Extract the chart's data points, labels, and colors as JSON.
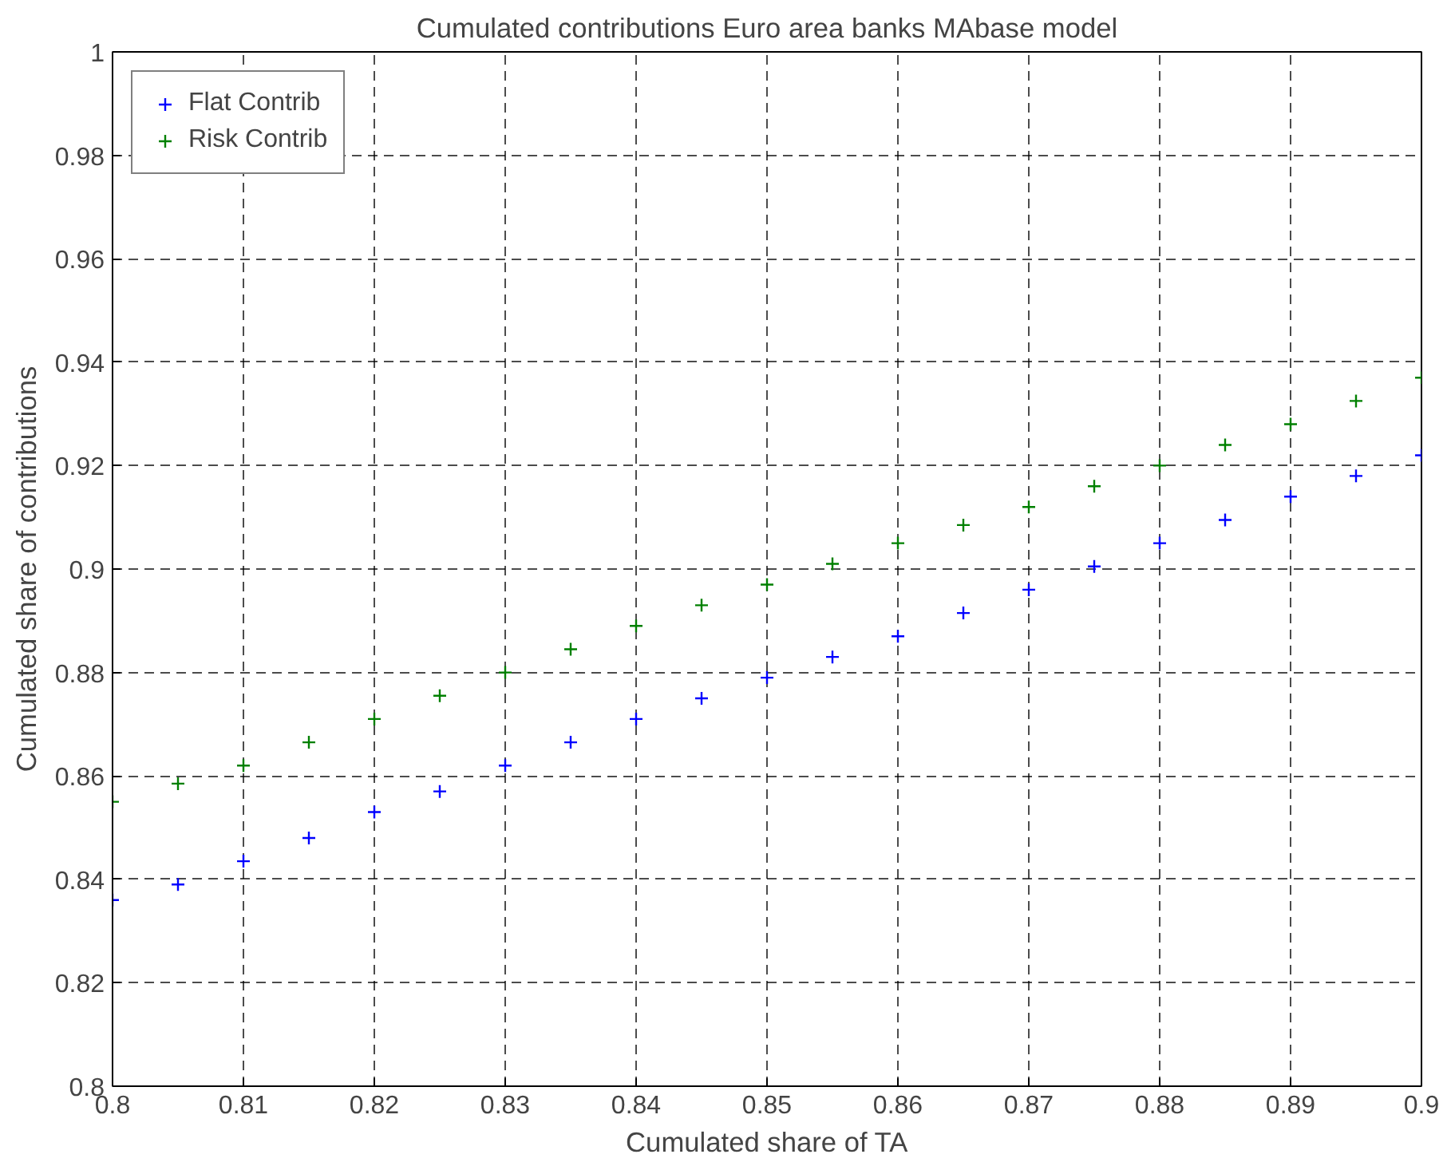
{
  "chart_data": {
    "type": "scatter",
    "title": "Cumulated contributions Euro area banks MAbase model",
    "xlabel": "Cumulated share of TA",
    "ylabel": "Cumulated share of contributions",
    "x": [
      0.8,
      0.805,
      0.81,
      0.815,
      0.82,
      0.825,
      0.83,
      0.835,
      0.84,
      0.845,
      0.85,
      0.855,
      0.86,
      0.865,
      0.87,
      0.875,
      0.88,
      0.885,
      0.89,
      0.895,
      0.9
    ],
    "series": [
      {
        "name": "Flat Contrib",
        "color": "#0000ff",
        "values": [
          0.836,
          0.839,
          0.8435,
          0.848,
          0.853,
          0.857,
          0.862,
          0.8665,
          0.871,
          0.875,
          0.879,
          0.883,
          0.887,
          0.8915,
          0.896,
          0.9005,
          0.905,
          0.9095,
          0.914,
          0.918,
          0.922
        ]
      },
      {
        "name": "Risk Contrib",
        "color": "#008000",
        "values": [
          0.855,
          0.8585,
          0.862,
          0.8665,
          0.871,
          0.8755,
          0.88,
          0.8845,
          0.889,
          0.893,
          0.897,
          0.901,
          0.905,
          0.9085,
          0.912,
          0.916,
          0.92,
          0.924,
          0.928,
          0.9325,
          0.937
        ]
      }
    ],
    "xlim": [
      0.8,
      0.9
    ],
    "xticks": [
      0.8,
      0.81,
      0.82,
      0.83,
      0.84,
      0.85,
      0.86,
      0.87,
      0.88,
      0.89,
      0.9
    ],
    "ylim": [
      0.8,
      1
    ],
    "yticks": [
      0.8,
      0.82,
      0.84,
      0.86,
      0.88,
      0.9,
      0.92,
      0.94,
      0.96,
      0.98,
      1
    ],
    "grid": true,
    "legend": "top left",
    "marker": "cross"
  }
}
